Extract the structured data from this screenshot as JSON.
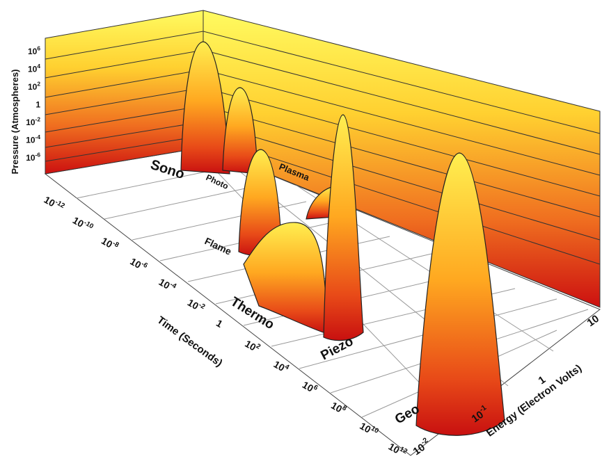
{
  "axes": {
    "pressure": {
      "title": "Pressure (Atmospheres)",
      "ticks": [
        {
          "base": "10",
          "exp": "6"
        },
        {
          "base": "10",
          "exp": "4"
        },
        {
          "base": "10",
          "exp": "2"
        },
        {
          "base": "1"
        },
        {
          "base": "10",
          "exp": "-2"
        },
        {
          "base": "10",
          "exp": "-4"
        },
        {
          "base": "10",
          "exp": "-6"
        }
      ]
    },
    "time": {
      "title": "Time (Seconds)",
      "ticks": [
        {
          "base": "10",
          "exp": "-12"
        },
        {
          "base": "10",
          "exp": "-10"
        },
        {
          "base": "10",
          "exp": "-8"
        },
        {
          "base": "10",
          "exp": "-6"
        },
        {
          "base": "10",
          "exp": "-4"
        },
        {
          "base": "10",
          "exp": "-2"
        },
        {
          "base": "1"
        },
        {
          "base": "10",
          "exp": "2"
        },
        {
          "base": "10",
          "exp": "4"
        },
        {
          "base": "10",
          "exp": "6"
        },
        {
          "base": "10",
          "exp": "8"
        },
        {
          "base": "10",
          "exp": "10"
        },
        {
          "base": "10",
          "exp": "12"
        }
      ]
    },
    "energy": {
      "title": "Energy (Electron Volts)",
      "ticks": [
        {
          "base": "10",
          "exp": "-2"
        },
        {
          "base": "10",
          "exp": "-1"
        },
        {
          "base": "1"
        },
        {
          "base": "10"
        }
      ]
    }
  },
  "regions": [
    {
      "label": "Sono"
    },
    {
      "label": "Photo"
    },
    {
      "label": "Plasma"
    },
    {
      "label": "Flame"
    },
    {
      "label": "Thermo"
    },
    {
      "label": "Piezo"
    },
    {
      "label": "Geo"
    }
  ]
}
